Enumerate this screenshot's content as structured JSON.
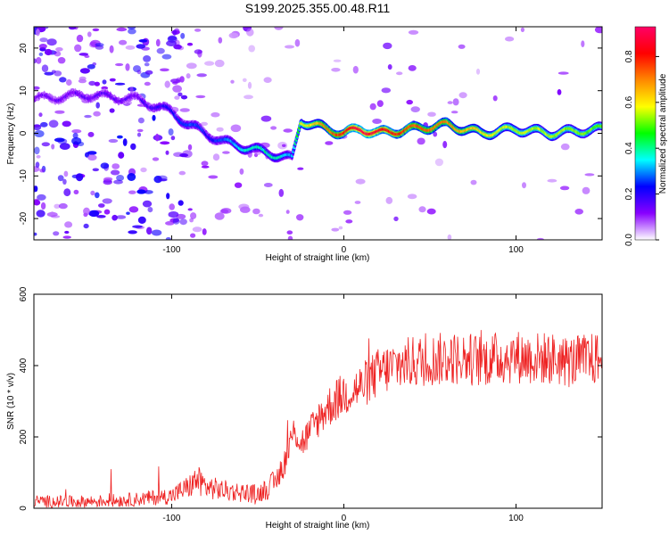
{
  "chart_data": [
    {
      "type": "heatmap",
      "title": "S199.2025.355.00.48.R11",
      "xlabel": "Height of straight line (km)",
      "ylabel": "Frequency (Hz)",
      "xlim": [
        -180,
        150
      ],
      "ylim": [
        -25,
        25
      ],
      "xticks": [
        -100,
        0,
        100
      ],
      "yticks": [
        -20,
        -10,
        0,
        10,
        20
      ],
      "colorbar": {
        "label": "Normalized spectral amplitude",
        "range": [
          0,
          0.93
        ],
        "ticks": [
          0.0,
          0.2,
          0.4,
          0.6,
          0.8
        ],
        "tick_labels": [
          "0.0",
          "0.2",
          "0.4",
          "0.6",
          "0.8"
        ],
        "colormap": [
          "#ffffff",
          "#8800ff",
          "#0000ff",
          "#00ffff",
          "#00ff00",
          "#ffff00",
          "#ff8800",
          "#ff0000",
          "#ff0066"
        ]
      },
      "ridge": {
        "x": [
          -180,
          -150,
          -120,
          -100,
          -90,
          -80,
          -70,
          -60,
          -50,
          -40,
          -30,
          -25,
          -10,
          0,
          10,
          20,
          40,
          60,
          80,
          100,
          120,
          150
        ],
        "frequency": [
          8,
          9,
          8,
          5,
          2,
          0,
          -2,
          -3,
          -4,
          -5,
          -6,
          3,
          1,
          0,
          1,
          0,
          1,
          2,
          0,
          1,
          0,
          1
        ],
        "amplitude": [
          0.12,
          0.15,
          0.15,
          0.22,
          0.28,
          0.22,
          0.28,
          0.35,
          0.38,
          0.4,
          0.3,
          0.55,
          0.7,
          0.8,
          0.9,
          0.85,
          0.75,
          0.7,
          0.6,
          0.55,
          0.55,
          0.5
        ]
      }
    },
    {
      "type": "line",
      "xlabel": "Height of straight line (km)",
      "ylabel": "SNR (10 * v/v)",
      "xlim": [
        -180,
        150
      ],
      "ylim": [
        0,
        600
      ],
      "xticks": [
        -100,
        0,
        100
      ],
      "yticks": [
        0,
        200,
        400,
        600
      ],
      "color": "#ee2222",
      "series": [
        {
          "name": "SNR",
          "x": [
            -180,
            -160,
            -140,
            -120,
            -100,
            -90,
            -85,
            -80,
            -70,
            -60,
            -50,
            -40,
            -35,
            -30,
            -28,
            -25,
            -20,
            -15,
            -10,
            -5,
            0,
            5,
            10,
            15,
            20,
            30,
            40,
            50,
            60,
            70,
            80,
            90,
            100,
            110,
            120,
            130,
            140,
            150
          ],
          "values": [
            20,
            18,
            20,
            25,
            35,
            60,
            80,
            60,
            50,
            45,
            40,
            70,
            120,
            200,
            220,
            180,
            210,
            250,
            280,
            300,
            320,
            330,
            340,
            360,
            380,
            400,
            410,
            415,
            420,
            420,
            415,
            420,
            425,
            420,
            420,
            410,
            415,
            420
          ]
        }
      ]
    }
  ]
}
